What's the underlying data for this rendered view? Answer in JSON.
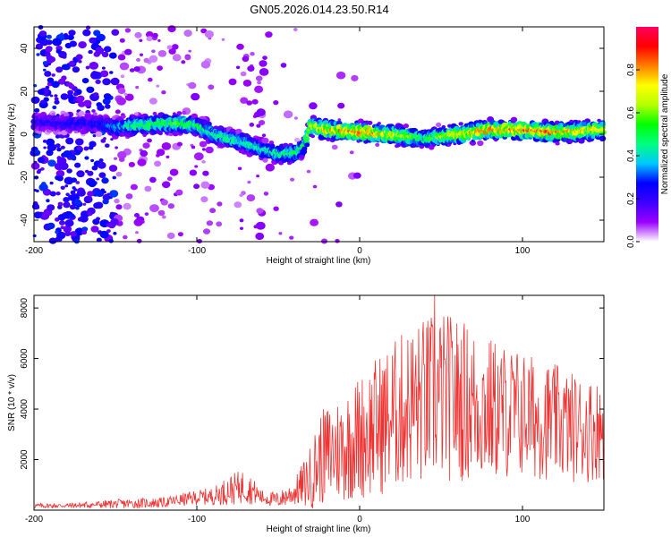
{
  "chart_data": [
    {
      "type": "heatmap",
      "title": "GN05.2026.014.23.50.R14",
      "xlabel": "Height of straight line (km)",
      "ylabel": "Frequency (Hz)",
      "xlim": [
        -200,
        150
      ],
      "ylim": [
        -50,
        50
      ],
      "x_ticks": [
        -200,
        -100,
        0,
        100
      ],
      "x_tick_labels": [
        "-200",
        "-100",
        "0",
        "100"
      ],
      "y_ticks": [
        40,
        20,
        0,
        -20,
        -40
      ],
      "y_tick_labels": [
        "40",
        "20",
        "0",
        "-20",
        "-40"
      ],
      "colorbar": {
        "label": "Normalized spectral amplitude",
        "range": [
          0,
          1
        ],
        "ticks": [
          0.0,
          0.2,
          0.4,
          0.6,
          0.8
        ],
        "tick_labels": [
          "0.0",
          "0.2",
          "0.4",
          "0.6",
          "0.8"
        ],
        "colormap": [
          "#ffffff",
          "#9a00ff",
          "#3c00ff",
          "#0000ff",
          "#00c8ff",
          "#00ff80",
          "#00ff00",
          "#b4ff00",
          "#ffff00",
          "#ff8000",
          "#ff0000",
          "#ff0060"
        ]
      },
      "ridge": {
        "x": [
          -200,
          -180,
          -160,
          -150,
          -140,
          -120,
          -110,
          -100,
          -90,
          -80,
          -70,
          -60,
          -50,
          -40,
          -34,
          -30,
          -20,
          0,
          20,
          40,
          60,
          80,
          100,
          120,
          150
        ],
        "frequency": [
          6,
          5,
          5,
          3,
          4,
          5,
          5,
          4,
          0,
          -2,
          -4,
          -7,
          -9,
          -9,
          -6,
          4,
          2,
          1,
          0,
          -2,
          0,
          2,
          2,
          1,
          2
        ],
        "peak_amplitude": [
          0.25,
          0.25,
          0.3,
          0.4,
          0.55,
          0.6,
          0.6,
          0.55,
          0.5,
          0.5,
          0.5,
          0.45,
          0.5,
          0.55,
          0.55,
          0.7,
          0.85,
          0.9,
          0.8,
          0.55,
          0.8,
          0.9,
          0.9,
          0.9,
          0.75
        ]
      }
    },
    {
      "type": "line",
      "xlabel": "Height of straight line (km)",
      "ylabel": "SNR (10 * v/v)",
      "xlim": [
        -200,
        150
      ],
      "ylim": [
        0,
        8500
      ],
      "x_ticks": [
        -200,
        -100,
        0,
        100
      ],
      "x_tick_labels": [
        "-200",
        "-100",
        "0",
        "100"
      ],
      "y_ticks": [
        2000,
        4000,
        6000,
        8000
      ],
      "y_tick_labels": [
        "2000",
        "4000",
        "6000",
        "8000"
      ],
      "series": [
        {
          "name": "SNR",
          "color": "#ee3333",
          "envelope_x": [
            -200,
            -180,
            -160,
            -150,
            -140,
            -120,
            -110,
            -100,
            -90,
            -80,
            -70,
            -60,
            -50,
            -40,
            -30,
            -25,
            -20,
            -10,
            0,
            10,
            20,
            30,
            40,
            50,
            60,
            70,
            80,
            90,
            100,
            110,
            120,
            130,
            140,
            150
          ],
          "mean": [
            170,
            180,
            220,
            250,
            260,
            300,
            400,
            500,
            550,
            800,
            950,
            500,
            400,
            700,
            1300,
            2000,
            2200,
            2500,
            2900,
            3300,
            3700,
            4100,
            4300,
            4500,
            4400,
            4200,
            4000,
            3900,
            3800,
            3600,
            3500,
            3300,
            3200,
            3200
          ],
          "spread": [
            100,
            100,
            150,
            180,
            200,
            200,
            250,
            300,
            350,
            600,
            700,
            300,
            300,
            500,
            1300,
            1800,
            2000,
            2200,
            2500,
            2800,
            3000,
            3200,
            3400,
            3400,
            3300,
            3100,
            2900,
            2700,
            2600,
            2400,
            2300,
            2200,
            2100,
            2000
          ],
          "peak": [
            {
              "x": 46,
              "y": 8500
            }
          ]
        }
      ]
    }
  ]
}
